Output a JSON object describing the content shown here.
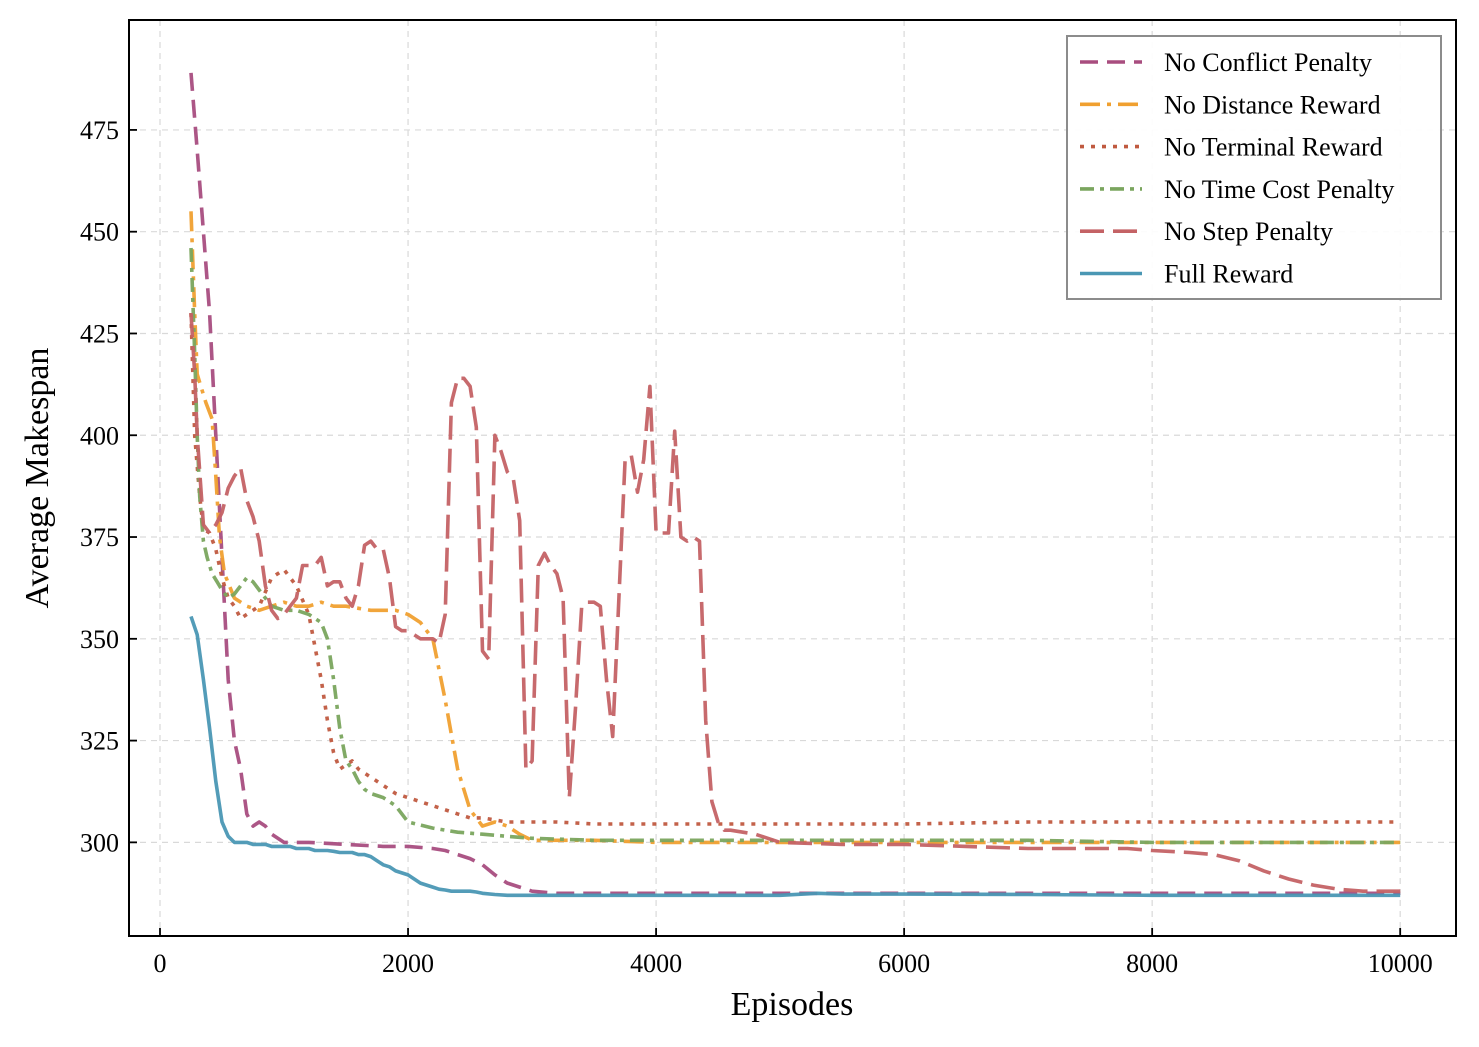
{
  "chart_data": {
    "type": "line",
    "xlabel": "Episodes",
    "ylabel": "Average Makespan",
    "xlim": [
      -250,
      10450
    ],
    "ylim": [
      277,
      502
    ],
    "xticks": [
      0,
      2000,
      4000,
      6000,
      8000,
      10000
    ],
    "yticks": [
      300,
      325,
      350,
      375,
      400,
      425,
      450,
      475
    ],
    "grid": true,
    "legend": "top-right",
    "series": [
      {
        "name": "No Conflict Penalty",
        "color": "#a84d7f",
        "dash": "18 9",
        "x": [
          250,
          300,
          350,
          400,
          450,
          500,
          550,
          600,
          650,
          700,
          750,
          800,
          850,
          900,
          950,
          1000,
          1100,
          1200,
          1500,
          1800,
          2000,
          2200,
          2300,
          2400,
          2500,
          2600,
          2700,
          2800,
          2900,
          3000,
          3200,
          3500,
          4000,
          4500,
          5000,
          6000,
          7000,
          8000,
          9000,
          10000
        ],
        "y": [
          489,
          470,
          450,
          430,
          400,
          370,
          340,
          325,
          318,
          307,
          304,
          305,
          304,
          302,
          301,
          300,
          300,
          300,
          299.5,
          299,
          299,
          298.5,
          298,
          297,
          296,
          294.5,
          292,
          290,
          289,
          288,
          287.5,
          287.5,
          287.5,
          287.5,
          287.5,
          287.5,
          287.5,
          287.5,
          287.5,
          287.5
        ]
      },
      {
        "name": "No Distance Reward",
        "color": "#f0a030",
        "dash": "20 7 4 7",
        "x": [
          250,
          280,
          300,
          330,
          370,
          420,
          450,
          480,
          520,
          600,
          700,
          800,
          900,
          1000,
          1100,
          1200,
          1300,
          1400,
          1500,
          1600,
          1700,
          1800,
          1900,
          2000,
          2100,
          2200,
          2300,
          2400,
          2500,
          2600,
          2700,
          2800,
          2900,
          3000,
          3200,
          3500,
          4000,
          5000,
          6000,
          7000,
          8000,
          9000,
          10000
        ],
        "y": [
          455,
          430,
          415,
          412,
          408,
          404,
          390,
          375,
          366,
          360,
          358,
          357,
          358,
          359,
          358,
          358,
          359,
          358,
          358,
          357.5,
          357,
          357,
          357,
          356,
          354,
          350,
          335,
          318,
          308,
          304,
          305,
          304,
          302,
          300.5,
          300.5,
          300.5,
          300,
          300,
          300,
          300,
          300,
          300,
          300
        ]
      },
      {
        "name": "No Terminal Reward",
        "color": "#c05a40",
        "dash": "4 7",
        "x": [
          250,
          280,
          320,
          350,
          400,
          450,
          500,
          550,
          600,
          650,
          700,
          800,
          900,
          1000,
          1100,
          1200,
          1300,
          1350,
          1400,
          1450,
          1500,
          1550,
          1600,
          1700,
          1800,
          1900,
          2000,
          2100,
          2200,
          2300,
          2400,
          2500,
          2600,
          2700,
          2800,
          3000,
          3200,
          3500,
          4000,
          4500,
          5000,
          6000,
          7000,
          8000,
          9000,
          10000
        ],
        "y": [
          430,
          400,
          385,
          377,
          376,
          372,
          365,
          360,
          358,
          355,
          356,
          358,
          365,
          367,
          363,
          356,
          340,
          330,
          322,
          318,
          319,
          320,
          318,
          316,
          314,
          312,
          311,
          310,
          309,
          308,
          307,
          306,
          306,
          305.5,
          305,
          305,
          305,
          304.5,
          304.5,
          304.5,
          304.5,
          304.5,
          305,
          305,
          305,
          305
        ]
      },
      {
        "name": "No Time Cost Penalty",
        "color": "#7aa55e",
        "dash": "14 6 4 6",
        "x": [
          250,
          280,
          300,
          320,
          350,
          380,
          420,
          460,
          500,
          550,
          600,
          650,
          700,
          750,
          800,
          900,
          1000,
          1100,
          1200,
          1300,
          1350,
          1400,
          1450,
          1500,
          1550,
          1600,
          1650,
          1700,
          1800,
          1900,
          2000,
          2200,
          2400,
          2600,
          2800,
          3000,
          3500,
          4000,
          5000,
          6000,
          7000,
          8000,
          9000,
          10000
        ],
        "y": [
          446,
          420,
          400,
          385,
          374,
          370,
          366,
          364,
          362,
          360,
          361,
          363,
          365,
          364,
          362,
          358,
          357,
          357,
          356,
          354,
          350,
          340,
          328,
          320,
          318,
          315,
          313,
          312,
          311,
          309,
          305,
          303.5,
          302.5,
          302,
          301.5,
          301,
          300.5,
          300.5,
          300.5,
          300.5,
          300.5,
          300,
          300,
          300
        ]
      },
      {
        "name": "No Step Penalty",
        "color": "#c46265",
        "dash": "24 9",
        "x": [
          250,
          280,
          300,
          350,
          400,
          450,
          500,
          550,
          600,
          650,
          700,
          750,
          800,
          850,
          900,
          950,
          1000,
          1050,
          1100,
          1150,
          1200,
          1250,
          1300,
          1350,
          1400,
          1450,
          1500,
          1550,
          1600,
          1650,
          1700,
          1750,
          1800,
          1850,
          1900,
          1950,
          2000,
          2100,
          2200,
          2250,
          2300,
          2350,
          2400,
          2450,
          2500,
          2550,
          2600,
          2650,
          2700,
          2750,
          2800,
          2850,
          2900,
          2950,
          3000,
          3050,
          3100,
          3150,
          3200,
          3250,
          3300,
          3350,
          3400,
          3450,
          3500,
          3550,
          3600,
          3650,
          3700,
          3750,
          3800,
          3850,
          3900,
          3950,
          4000,
          4050,
          4100,
          4150,
          4200,
          4250,
          4300,
          4350,
          4400,
          4450,
          4500,
          4550,
          4600,
          4700,
          4800,
          5000,
          5500,
          6000,
          6500,
          7000,
          7500,
          7800,
          8000,
          8300,
          8500,
          8700,
          8900,
          9100,
          9300,
          9500,
          9700,
          10000
        ],
        "y": [
          430,
          415,
          400,
          378,
          376,
          378,
          381,
          387,
          390,
          392,
          384,
          380,
          374,
          363,
          357,
          355,
          356,
          358,
          360,
          368,
          368,
          368,
          370,
          363,
          364,
          364,
          360,
          358,
          363,
          373,
          374,
          372,
          372,
          365,
          353,
          352,
          352,
          350,
          350,
          349,
          356,
          408,
          414,
          414,
          412,
          402,
          347,
          345,
          400,
          396,
          391,
          389,
          379,
          318,
          320,
          368,
          371,
          368,
          366,
          360,
          311,
          333,
          358,
          359,
          359,
          358,
          340,
          326,
          360,
          394,
          395,
          386,
          394,
          412,
          376,
          376,
          376,
          401,
          375,
          374,
          375,
          374,
          330,
          310,
          305,
          303,
          303,
          302.5,
          302,
          300,
          299.5,
          299.5,
          299,
          298.5,
          298.5,
          298.5,
          298,
          297.5,
          297,
          295.5,
          293,
          291,
          289.5,
          288.5,
          288,
          288
        ]
      },
      {
        "name": "Full Reward",
        "color": "#4a97b4",
        "dash": "",
        "x": [
          250,
          300,
          350,
          400,
          450,
          500,
          550,
          600,
          650,
          700,
          750,
          800,
          850,
          900,
          950,
          1000,
          1050,
          1100,
          1150,
          1200,
          1250,
          1300,
          1350,
          1400,
          1450,
          1500,
          1550,
          1600,
          1650,
          1700,
          1750,
          1800,
          1850,
          1900,
          1950,
          2000,
          2050,
          2100,
          2150,
          2200,
          2250,
          2300,
          2350,
          2400,
          2450,
          2500,
          2550,
          2600,
          2700,
          2800,
          3000,
          3500,
          4000,
          5000,
          5300,
          5500,
          6000,
          7000,
          8000,
          9000,
          10000
        ],
        "y": [
          355.5,
          351,
          340,
          328,
          315,
          305,
          301.5,
          300,
          300,
          300,
          299.5,
          299.5,
          299.5,
          299,
          299,
          299,
          299,
          298.5,
          298.5,
          298.5,
          298,
          298,
          298,
          297.8,
          297.5,
          297.5,
          297.5,
          297,
          297,
          296.5,
          295.5,
          294.5,
          294,
          293,
          292.5,
          292,
          291,
          290,
          289.5,
          289,
          288.5,
          288.3,
          288,
          288,
          288,
          288,
          287.8,
          287.5,
          287.2,
          287,
          287,
          287,
          287,
          287,
          287.5,
          287.3,
          287.3,
          287.2,
          287,
          287,
          287
        ]
      }
    ]
  }
}
